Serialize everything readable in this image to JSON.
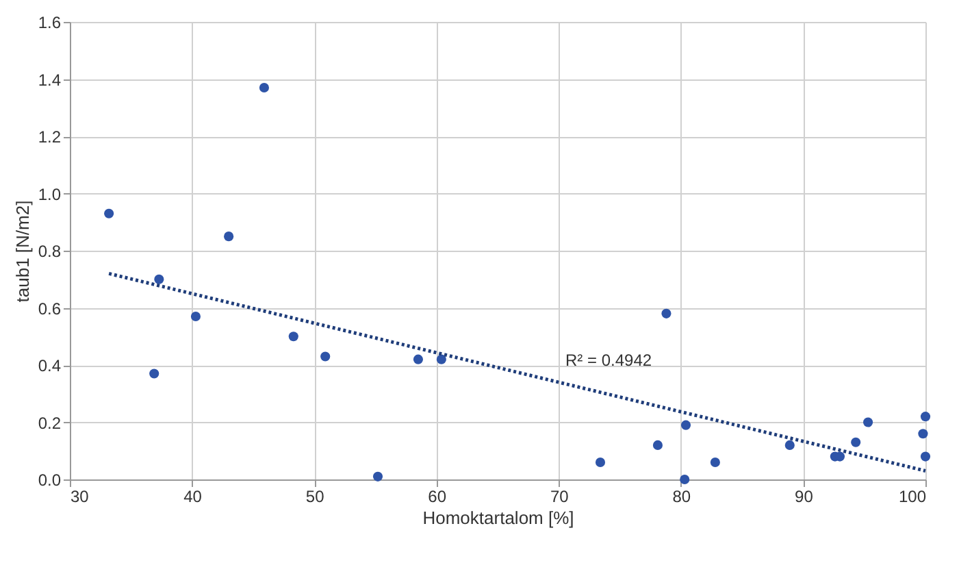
{
  "chart_data": {
    "type": "scatter",
    "xlabel": "Homoktartalom [%]",
    "ylabel": "taub1 [N/m2]",
    "xlim": [
      30,
      100
    ],
    "xticks": [
      30,
      40,
      50,
      60,
      70,
      80,
      90,
      100
    ],
    "ylim": [
      0,
      1.6
    ],
    "yticks": [
      {
        "value": 0,
        "label": "0.0"
      },
      0.2,
      0.4,
      0.6,
      0.8,
      {
        "value": 1,
        "label": "1.0"
      },
      1.2,
      1.4,
      1.6
    ],
    "grid": true,
    "marker": "circle",
    "series": [
      {
        "color": "#2e54a8",
        "x": [
          33.2,
          37.3,
          36.9,
          40.3,
          43.0,
          45.9,
          48.3,
          50.9,
          55.2,
          58.5,
          60.4,
          73.4,
          78.1,
          78.8,
          80.4,
          80.3,
          82.8,
          88.9,
          92.6,
          93.0,
          94.3,
          95.3,
          100,
          99.8,
          100
        ],
        "values": [
          0.93,
          0.7,
          0.37,
          0.57,
          0.85,
          1.37,
          0.5,
          0.43,
          0.01,
          0.42,
          0.42,
          0.06,
          0.12,
          0.58,
          0.19,
          0.0,
          0.06,
          0.12,
          0.08,
          0.08,
          0.13,
          0.2,
          0.22,
          0.16,
          0.08
        ]
      },
      {
        "type": "line",
        "color": "#1f3d7a",
        "line_style": "dotted",
        "marker": "none",
        "x": [
          33.2,
          100
        ],
        "values": [
          0.72,
          0.03
        ]
      }
    ],
    "annotations": [
      "R² = 0.4942"
    ]
  }
}
